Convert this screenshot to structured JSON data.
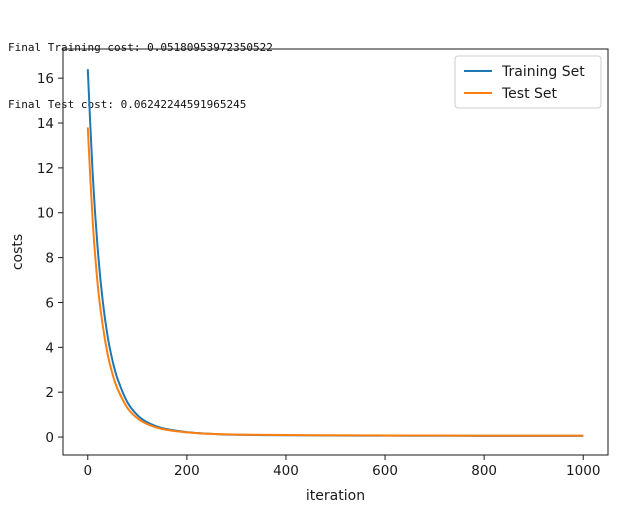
{
  "console": {
    "lines": [
      "Final Training cost: 0.05180953972350522",
      "Final Test cost: 0.06242244591965245"
    ]
  },
  "chart_data": {
    "type": "line",
    "title": "",
    "xlabel": "iteration",
    "ylabel": "costs",
    "xlim": [
      -50,
      1050
    ],
    "ylim": [
      -0.8,
      17.3
    ],
    "xticks": [
      0,
      200,
      400,
      600,
      800,
      1000
    ],
    "yticks": [
      0,
      2,
      4,
      6,
      8,
      10,
      12,
      14,
      16
    ],
    "grid": false,
    "legend_position": "top-right",
    "series": [
      {
        "name": "Training Set",
        "color": "#1f77b4",
        "x": [
          0,
          10,
          20,
          30,
          40,
          50,
          60,
          80,
          100,
          120,
          150,
          200,
          250,
          300,
          400,
          500,
          600,
          700,
          800,
          900,
          1000
        ],
        "y": [
          16.4,
          11.7,
          8.4,
          6.1,
          4.5,
          3.4,
          2.6,
          1.55,
          0.98,
          0.66,
          0.4,
          0.22,
          0.14,
          0.1,
          0.08,
          0.068,
          0.062,
          0.058,
          0.055,
          0.053,
          0.052
        ]
      },
      {
        "name": "Test Set",
        "color": "#ff7f0e",
        "x": [
          0,
          10,
          20,
          30,
          40,
          50,
          60,
          80,
          100,
          120,
          150,
          200,
          250,
          300,
          400,
          500,
          600,
          700,
          800,
          900,
          1000
        ],
        "y": [
          13.8,
          9.6,
          6.8,
          5.0,
          3.7,
          2.8,
          2.15,
          1.3,
          0.84,
          0.58,
          0.36,
          0.21,
          0.14,
          0.11,
          0.09,
          0.078,
          0.072,
          0.068,
          0.065,
          0.063,
          0.062
        ]
      }
    ]
  }
}
